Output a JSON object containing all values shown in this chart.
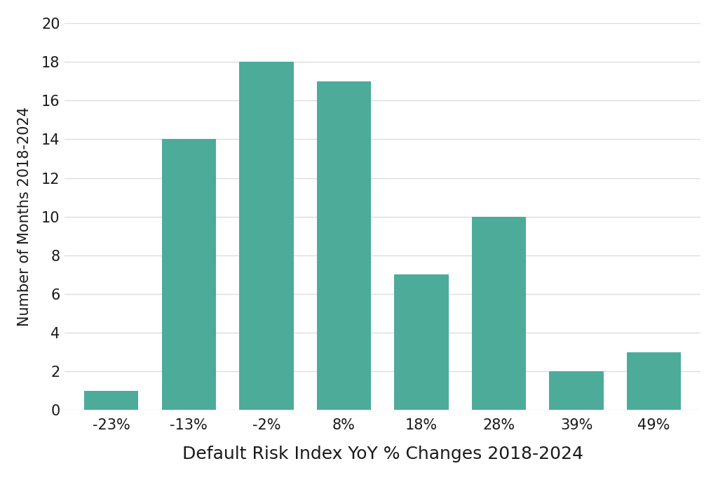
{
  "categories": [
    "-23%",
    "-13%",
    "-2%",
    "8%",
    "18%",
    "28%",
    "39%",
    "49%"
  ],
  "values": [
    1,
    14,
    18,
    17,
    7,
    10,
    2,
    3
  ],
  "bar_color": "#4dab9a",
  "xlabel": "Default Risk Index YoY % Changes 2018-2024",
  "ylabel": "Number of Months 2018-2024",
  "ylim": [
    0,
    20
  ],
  "yticks": [
    0,
    2,
    4,
    6,
    8,
    10,
    12,
    14,
    16,
    18,
    20
  ],
  "background_color": "#ffffff",
  "xlabel_fontsize": 18,
  "ylabel_fontsize": 15,
  "tick_fontsize": 15,
  "bar_width": 0.7,
  "grid_color": "#dddddd",
  "edge_color": "none"
}
